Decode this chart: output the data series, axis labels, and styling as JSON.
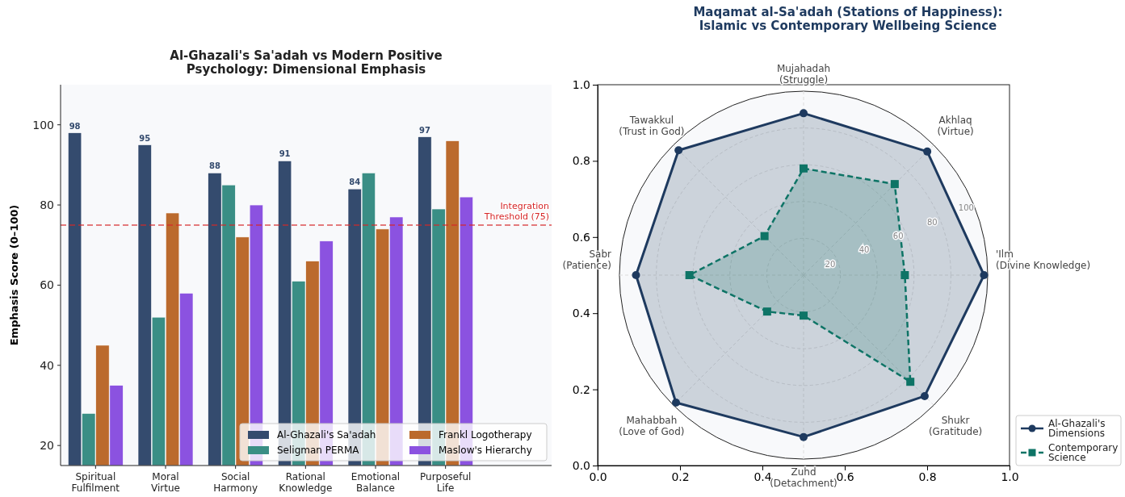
{
  "chart_data": [
    {
      "type": "bar",
      "title": "Al-Ghazali's Sa'adah vs Modern Positive\nPsychology: Dimensional Emphasis",
      "ylabel": "Emphasis Score (0–100)",
      "categories": [
        "Spiritual\nFulfilment",
        "Moral\nVirtue",
        "Social\nHarmony",
        "Rational\nKnowledge",
        "Emotional\nBalance",
        "Purposeful\nLife"
      ],
      "series": [
        {
          "name": "Al-Ghazali's Sa'adah",
          "color": "#344b6e",
          "values": [
            98,
            95,
            88,
            91,
            84,
            97
          ],
          "value_labels": [
            "98",
            "95",
            "88",
            "91",
            "84",
            "97"
          ]
        },
        {
          "name": "Seligman PERMA",
          "color": "#3a8e85",
          "values": [
            28,
            52,
            85,
            61,
            88,
            79
          ]
        },
        {
          "name": "Frankl Logotherapy",
          "color": "#bb6a2d",
          "values": [
            45,
            78,
            72,
            66,
            74,
            96
          ]
        },
        {
          "name": "Maslow's Hierarchy",
          "color": "#8b52e0",
          "values": [
            35,
            58,
            80,
            71,
            77,
            82
          ]
        }
      ],
      "ylim": [
        15,
        110
      ],
      "yticks": [
        20,
        40,
        60,
        80,
        100
      ],
      "grid": false,
      "legend": "bottom right",
      "ref_lines": [
        {
          "axis": "y",
          "value": 75,
          "label": "Integration\nThreshold (75)",
          "color": "#d62728",
          "line_style": "dashed"
        }
      ]
    },
    {
      "type": "radar",
      "title": "Maqamat al-Sa'adah (Stations of Happiness):\nIslamic vs Contemporary Wellbeing Science",
      "categories": [
        "Mujahadah\n(Struggle)",
        "Akhlaq\n(Virtue)",
        "'Ilm\n(Divine Knowledge)",
        "Shukr\n(Gratitude)",
        "Zuhd\n(Detachment)",
        "Mahabbah\n(Love of God)",
        "Sabr\n(Patience)",
        "Tawakkul\n(Trust in God)"
      ],
      "series": [
        {
          "name": "Al-Ghazali's\nDimensions",
          "color": "#1e3a5f",
          "values": [
            88,
            95,
            98,
            93,
            88,
            98,
            91,
            96
          ],
          "marker": "circle",
          "line_style": "solid"
        },
        {
          "name": "Contemporary\nScience",
          "color": "#0e7466",
          "values": [
            58,
            70,
            55,
            82,
            22,
            28,
            62,
            30
          ],
          "marker": "square",
          "line_style": "dashed"
        }
      ],
      "ylim": [
        0,
        100
      ],
      "yticks": [
        20,
        40,
        60,
        80,
        100
      ],
      "grid": true,
      "legend": "bottom right"
    },
    {
      "type": "scatter",
      "xlim": [
        0,
        1
      ],
      "xticks": [
        {
          "value": 0,
          "label": "0.0"
        },
        {
          "value": 0.2,
          "label": "0.2"
        },
        {
          "value": 0.4,
          "label": "0.4"
        },
        {
          "value": 0.6,
          "label": "0.6"
        },
        {
          "value": 0.8,
          "label": "0.8"
        },
        {
          "value": 1,
          "label": "1.0"
        }
      ],
      "ylim": [
        0,
        1
      ],
      "yticks": [
        {
          "value": 0,
          "label": "0.0"
        },
        {
          "value": 0.2,
          "label": "0.2"
        },
        {
          "value": 0.4,
          "label": "0.4"
        },
        {
          "value": 0.6,
          "label": "0.6"
        },
        {
          "value": 0.8,
          "label": "0.8"
        },
        {
          "value": 1,
          "label": "1.0"
        }
      ]
    }
  ]
}
